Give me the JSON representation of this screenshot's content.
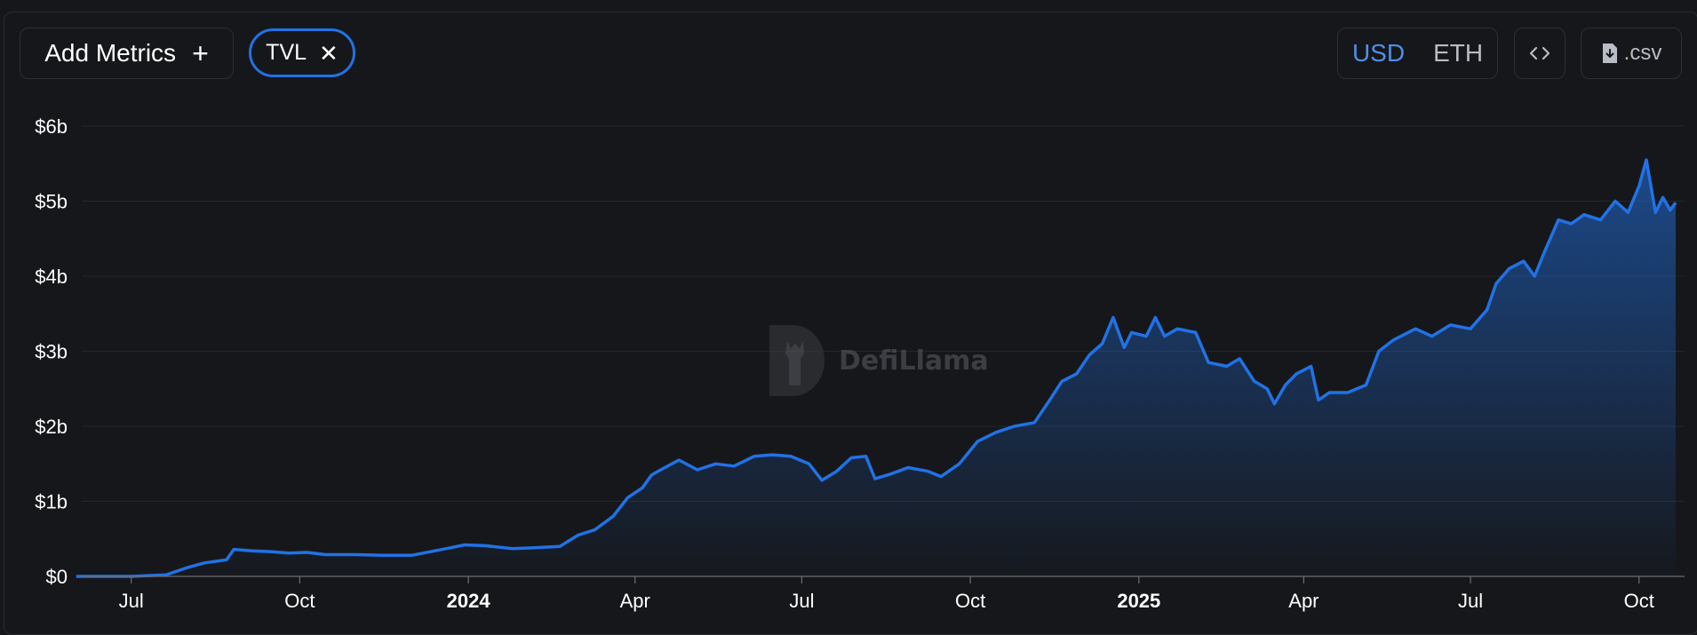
{
  "toolbar": {
    "add_metrics_label": "Add Metrics",
    "metric_chip_label": "TVL",
    "units": [
      "USD",
      "ETH"
    ],
    "active_unit": "USD",
    "csv_label": ".csv"
  },
  "watermark": {
    "text": "DefiLlama"
  },
  "colors": {
    "line": "#2172e5",
    "accent": "#4f8fea",
    "background": "#16171a"
  },
  "chart_data": {
    "type": "area",
    "series": [
      {
        "values": [
          [
            "2023-06-01",
            0
          ],
          [
            "2023-07-01",
            0
          ],
          [
            "2023-07-20",
            0.02
          ],
          [
            "2023-08-01",
            0.12
          ],
          [
            "2023-08-10",
            0.18
          ],
          [
            "2023-08-22",
            0.22
          ],
          [
            "2023-08-26",
            0.36
          ],
          [
            "2023-09-05",
            0.34
          ],
          [
            "2023-09-15",
            0.33
          ],
          [
            "2023-09-25",
            0.31
          ],
          [
            "2023-10-05",
            0.32
          ],
          [
            "2023-10-15",
            0.29
          ],
          [
            "2023-11-01",
            0.29
          ],
          [
            "2023-11-15",
            0.28
          ],
          [
            "2023-12-01",
            0.28
          ],
          [
            "2023-12-20",
            0.37
          ],
          [
            "2023-12-30",
            0.42
          ],
          [
            "2024-01-10",
            0.41
          ],
          [
            "2024-01-25",
            0.37
          ],
          [
            "2024-02-05",
            0.38
          ],
          [
            "2024-02-20",
            0.4
          ],
          [
            "2024-03-01",
            0.55
          ],
          [
            "2024-03-10",
            0.62
          ],
          [
            "2024-03-20",
            0.8
          ],
          [
            "2024-03-28",
            1.05
          ],
          [
            "2024-04-05",
            1.18
          ],
          [
            "2024-04-10",
            1.35
          ],
          [
            "2024-04-15",
            1.42
          ],
          [
            "2024-04-25",
            1.55
          ],
          [
            "2024-05-05",
            1.42
          ],
          [
            "2024-05-15",
            1.5
          ],
          [
            "2024-05-25",
            1.47
          ],
          [
            "2024-06-05",
            1.6
          ],
          [
            "2024-06-15",
            1.62
          ],
          [
            "2024-06-25",
            1.6
          ],
          [
            "2024-07-05",
            1.5
          ],
          [
            "2024-07-12",
            1.28
          ],
          [
            "2024-07-20",
            1.4
          ],
          [
            "2024-07-28",
            1.58
          ],
          [
            "2024-08-05",
            1.6
          ],
          [
            "2024-08-10",
            1.3
          ],
          [
            "2024-08-18",
            1.36
          ],
          [
            "2024-08-28",
            1.45
          ],
          [
            "2024-09-08",
            1.4
          ],
          [
            "2024-09-15",
            1.33
          ],
          [
            "2024-09-25",
            1.5
          ],
          [
            "2024-10-05",
            1.8
          ],
          [
            "2024-10-15",
            1.92
          ],
          [
            "2024-10-25",
            2.0
          ],
          [
            "2024-11-05",
            2.05
          ],
          [
            "2024-11-12",
            2.3
          ],
          [
            "2024-11-20",
            2.6
          ],
          [
            "2024-11-28",
            2.7
          ],
          [
            "2024-12-05",
            2.95
          ],
          [
            "2024-12-12",
            3.1
          ],
          [
            "2024-12-18",
            3.45
          ],
          [
            "2024-12-24",
            3.05
          ],
          [
            "2024-12-28",
            3.25
          ],
          [
            "2025-01-05",
            3.2
          ],
          [
            "2025-01-10",
            3.45
          ],
          [
            "2025-01-15",
            3.2
          ],
          [
            "2025-01-22",
            3.3
          ],
          [
            "2025-02-01",
            3.25
          ],
          [
            "2025-02-08",
            2.85
          ],
          [
            "2025-02-18",
            2.8
          ],
          [
            "2025-02-25",
            2.9
          ],
          [
            "2025-03-05",
            2.6
          ],
          [
            "2025-03-12",
            2.5
          ],
          [
            "2025-03-16",
            2.3
          ],
          [
            "2025-03-22",
            2.55
          ],
          [
            "2025-03-28",
            2.7
          ],
          [
            "2025-04-05",
            2.8
          ],
          [
            "2025-04-09",
            2.35
          ],
          [
            "2025-04-15",
            2.45
          ],
          [
            "2025-04-25",
            2.45
          ],
          [
            "2025-05-05",
            2.55
          ],
          [
            "2025-05-12",
            3.0
          ],
          [
            "2025-05-20",
            3.15
          ],
          [
            "2025-06-01",
            3.3
          ],
          [
            "2025-06-10",
            3.2
          ],
          [
            "2025-06-20",
            3.35
          ],
          [
            "2025-07-01",
            3.3
          ],
          [
            "2025-07-10",
            3.55
          ],
          [
            "2025-07-15",
            3.9
          ],
          [
            "2025-07-22",
            4.1
          ],
          [
            "2025-07-30",
            4.2
          ],
          [
            "2025-08-05",
            4.0
          ],
          [
            "2025-08-10",
            4.3
          ],
          [
            "2025-08-18",
            4.75
          ],
          [
            "2025-08-25",
            4.7
          ],
          [
            "2025-09-01",
            4.82
          ],
          [
            "2025-09-10",
            4.75
          ],
          [
            "2025-09-18",
            5.0
          ],
          [
            "2025-09-25",
            4.85
          ],
          [
            "2025-10-01",
            5.2
          ],
          [
            "2025-10-05",
            5.55
          ],
          [
            "2025-10-10",
            4.85
          ],
          [
            "2025-10-14",
            5.05
          ],
          [
            "2025-10-18",
            4.88
          ],
          [
            "2025-10-21",
            4.98
          ]
        ]
      }
    ],
    "yticks": [
      "$6b",
      "$5b",
      "$4b",
      "$3b",
      "$2b",
      "$1b",
      "$0"
    ],
    "ylim": [
      0,
      6
    ],
    "xticks": [
      {
        "label": "Jul",
        "date": "2023-07-01",
        "bold": false
      },
      {
        "label": "Oct",
        "date": "2023-10-01",
        "bold": false
      },
      {
        "label": "2024",
        "date": "2024-01-01",
        "bold": true
      },
      {
        "label": "Apr",
        "date": "2024-04-01",
        "bold": false
      },
      {
        "label": "Jul",
        "date": "2024-07-01",
        "bold": false
      },
      {
        "label": "Oct",
        "date": "2024-10-01",
        "bold": false
      },
      {
        "label": "2025",
        "date": "2025-01-01",
        "bold": true
      },
      {
        "label": "Apr",
        "date": "2025-04-01",
        "bold": false
      },
      {
        "label": "Jul",
        "date": "2025-07-01",
        "bold": false
      },
      {
        "label": "Oct",
        "date": "2025-10-01",
        "bold": false
      }
    ],
    "xlim": [
      "2023-06-04",
      "2025-10-21"
    ],
    "grid": true
  }
}
